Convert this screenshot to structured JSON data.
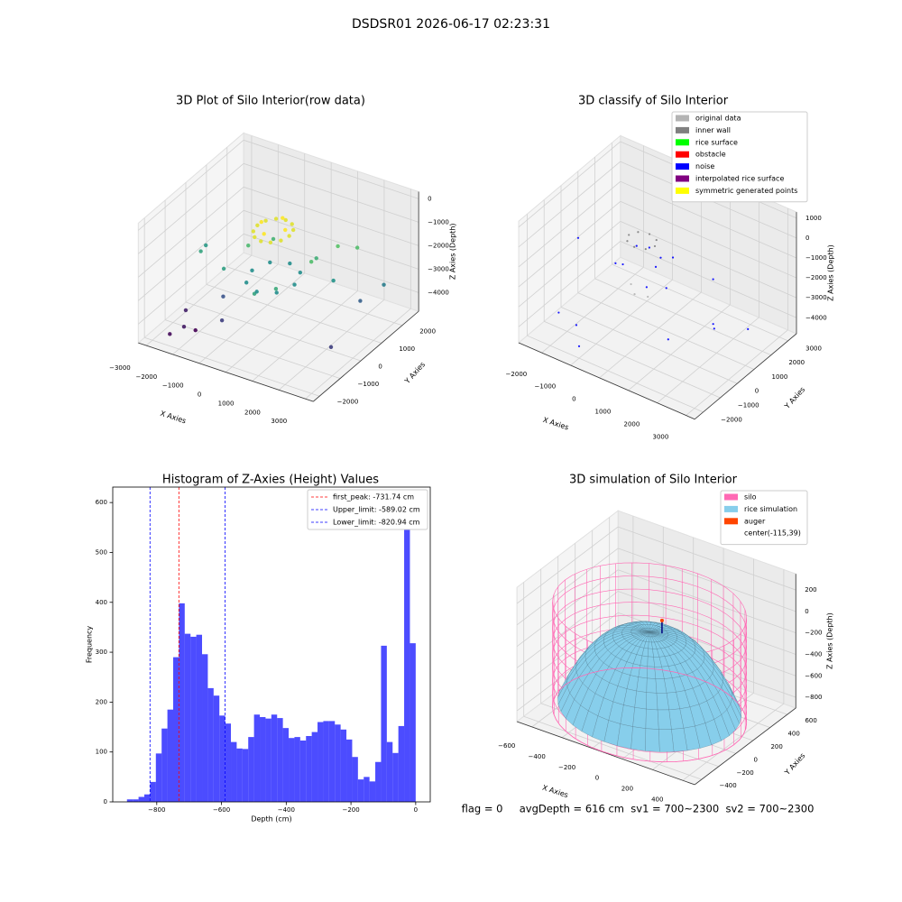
{
  "title": "DSDSR01 2026-06-17 02:23:31",
  "footer": "flag = 0     avgDepth = 616 cm  sv1 = 700~2300  sv2 = 700~2300",
  "chart_data": [
    {
      "type": "scatter3d",
      "title": "3D Plot of Silo Interior(row data)",
      "xlabel": "X Axies",
      "ylabel": "Y Axies",
      "zlabel": "Z Axies (Depth)",
      "colormap": "viridis",
      "xlim": [
        -3300,
        3300
      ],
      "ylim": [
        -2300,
        2800
      ],
      "zlim": [
        -4800,
        300
      ],
      "xticks": [
        {
          "value": -3000,
          "label": "−3000"
        },
        {
          "value": -2000,
          "label": "−2000"
        },
        {
          "value": -1000,
          "label": "−1000"
        },
        0,
        1000,
        2000,
        3000
      ],
      "yticks": [
        {
          "value": -2000,
          "label": "−2000"
        },
        {
          "value": -1000,
          "label": "−1000"
        },
        0,
        1000,
        2000
      ],
      "zticks": [
        0,
        {
          "value": -1000,
          "label": "−1000"
        },
        {
          "value": -2000,
          "label": "−2000"
        },
        {
          "value": -3000,
          "label": "−3000"
        },
        {
          "value": -4000,
          "label": "−4000"
        }
      ],
      "series": [
        {
          "x": [
            600,
            520,
            300,
            0,
            -300,
            -520,
            -600,
            -520,
            -300,
            0,
            300,
            520,
            450,
            0,
            -450,
            0,
            1200,
            -1100,
            800,
            -700,
            1500,
            300,
            -1400,
            1000,
            -2500,
            -2700,
            2000,
            1800,
            800,
            0,
            -800,
            0,
            570,
            -570,
            -570,
            570,
            -1500,
            -1000,
            2500,
            2800,
            3000,
            -2500,
            -2200,
            -2000,
            -2600
          ],
          "y": [
            0,
            300,
            520,
            600,
            520,
            300,
            0,
            -300,
            -520,
            -600,
            -520,
            -300,
            0,
            450,
            0,
            -450,
            300,
            200,
            -900,
            900,
            1200,
            -1300,
            -600,
            800,
            -300,
            200,
            1500,
            600,
            0,
            800,
            0,
            -800,
            570,
            570,
            -570,
            -570,
            -500,
            -1200,
            1000,
            -800,
            1500,
            -1800,
            -1500,
            -1200,
            -900
          ],
          "z": [
            -500,
            -500,
            -500,
            -500,
            -500,
            -500,
            -500,
            -500,
            -500,
            -500,
            -500,
            -500,
            -300,
            -300,
            -300,
            -300,
            -1600,
            -1700,
            -2000,
            -1800,
            -1500,
            -2100,
            -2200,
            -1900,
            -2100,
            -2300,
            -1600,
            -2400,
            -2500,
            -2500,
            -2500,
            -2500,
            -2500,
            -2500,
            -2500,
            -2500,
            -3500,
            -3800,
            -3300,
            -3800,
            -2800,
            -4500,
            -4300,
            -4600,
            -4200
          ]
        }
      ]
    },
    {
      "type": "scatter3d",
      "title": "3D classify of Silo Interior",
      "xlabel": "X Axies",
      "ylabel": "Y Axies",
      "zlabel": "Z Axies (Depth)",
      "xlim": [
        -2800,
        3300
      ],
      "ylim": [
        -2500,
        3500
      ],
      "zlim": [
        -4800,
        1300
      ],
      "xticks": [
        {
          "value": -2000,
          "label": "−2000"
        },
        {
          "value": -1000,
          "label": "−1000"
        },
        0,
        1000,
        2000,
        3000
      ],
      "yticks": [
        {
          "value": -2000,
          "label": "−2000"
        },
        {
          "value": -1000,
          "label": "−1000"
        },
        0,
        1000,
        2000,
        3000
      ],
      "zticks": [
        1000,
        0,
        {
          "value": -1000,
          "label": "−1000"
        },
        {
          "value": -2000,
          "label": "−2000"
        },
        {
          "value": -3000,
          "label": "−3000"
        },
        {
          "value": -4000,
          "label": "−4000"
        }
      ],
      "series": [
        {
          "name": "original data",
          "color": "#b3b3b3",
          "x": [
            -200,
            100,
            500
          ],
          "y": [
            -300,
            -600,
            -500
          ],
          "z": [
            -1800,
            -1900,
            -1850
          ]
        },
        {
          "name": "inner wall",
          "color": "#808080",
          "x": [
            450,
            318,
            0,
            -318,
            -450,
            -318,
            0,
            318
          ],
          "y": [
            0,
            318,
            450,
            318,
            0,
            -318,
            -450,
            -318
          ],
          "z": [
            300,
            300,
            300,
            300,
            300,
            300,
            300,
            300
          ]
        },
        {
          "name": "rice surface",
          "color": "#00ff00"
        },
        {
          "name": "obstacle",
          "color": "#ff0000"
        },
        {
          "name": "noise",
          "color": "#0000ff",
          "x": [
            200,
            -300,
            600,
            900,
            -1500,
            -2000,
            1500,
            2500,
            2800,
            -2500,
            1000,
            -1000,
            400,
            -600,
            300,
            1200,
            2000,
            -1800
          ],
          "y": [
            100,
            200,
            -200,
            300,
            1000,
            -1500,
            -1000,
            2000,
            -500,
            500,
            2500,
            -2000,
            -400,
            -100,
            600,
            -600,
            800,
            -800
          ],
          "z": [
            0,
            -300,
            -500,
            -200,
            -2500,
            -3500,
            -3000,
            -4000,
            -2000,
            -1500,
            -2800,
            -4200,
            -1500,
            -1200,
            -800,
            -900,
            -3200,
            -4500
          ]
        },
        {
          "name": "interpolated rice surface",
          "color": "#800080"
        },
        {
          "name": "symmetric generated points",
          "color": "#ffff00"
        }
      ]
    },
    {
      "type": "hist",
      "title": "Histogram of Z-Axies (Height) Values",
      "xlabel": "Depth (cm)",
      "ylabel": "Frequency",
      "color": "#0000ff",
      "bins": [
        -892,
        -874.16,
        -856.32,
        -838.48,
        -820.64,
        -802.8,
        -784.96,
        -767.12,
        -749.28,
        -731.44,
        -713.6,
        -695.76,
        -677.92,
        -660.08,
        -642.24,
        -624.4,
        -606.56,
        -588.72,
        -570.88,
        -553.04,
        -535.2,
        -517.36,
        -499.52,
        -481.68,
        -463.84,
        -446,
        -428.16,
        -410.32,
        -392.48,
        -374.64,
        -356.8,
        -338.96,
        -321.12,
        -303.28,
        -285.44,
        -267.6,
        -249.76,
        -231.92,
        -214.08,
        -196.24,
        -178.4,
        -160.56,
        -142.72,
        -124.88,
        -107.04,
        -89.2,
        -71.36,
        -53.52,
        -35.68,
        -17.84,
        0
      ],
      "counts": [
        5,
        5,
        10,
        15,
        40,
        97,
        147,
        185,
        290,
        398,
        337,
        331,
        335,
        296,
        228,
        213,
        173,
        157,
        120,
        107,
        106,
        130,
        175,
        170,
        167,
        175,
        168,
        148,
        128,
        130,
        123,
        132,
        140,
        160,
        162,
        162,
        155,
        145,
        125,
        90,
        45,
        50,
        41,
        80,
        313,
        120,
        98,
        152,
        595,
        318
      ],
      "vlines": [
        {
          "value": -731.74,
          "label": "first_peak: -731.74 cm",
          "color": "#ff0000"
        },
        {
          "value": -589.02,
          "label": "Upper_limit: -589.02 cm",
          "color": "#0000ff"
        },
        {
          "value": -820.94,
          "label": "Lower_limit: -820.94 cm",
          "color": "#0000ff"
        }
      ],
      "xlim": [
        -936,
        45
      ],
      "ylim": [
        0,
        631
      ],
      "xticks": [
        {
          "value": -800,
          "label": "−800"
        },
        {
          "value": -600,
          "label": "−600"
        },
        {
          "value": -400,
          "label": "−400"
        },
        {
          "value": -200,
          "label": "−200"
        },
        0
      ],
      "yticks": [
        0,
        100,
        200,
        300,
        400,
        500,
        600
      ]
    },
    {
      "type": "surface3d",
      "title": "3D simulation of Silo Interior",
      "xlabel": "X Axies",
      "ylabel": "Y Axies",
      "zlabel": "Z Axies (Depth)",
      "xlim": [
        -700,
        480
      ],
      "ylim": [
        -480,
        700
      ],
      "zlim": [
        -900,
        350
      ],
      "xticks": [
        {
          "value": -600,
          "label": "−600"
        },
        {
          "value": -400,
          "label": "−400"
        },
        {
          "value": -200,
          "label": "−200"
        },
        0,
        200,
        400
      ],
      "yticks": [
        {
          "value": -400,
          "label": "−400"
        },
        {
          "value": -200,
          "label": "−200"
        },
        0,
        200,
        400,
        600
      ],
      "zticks": [
        200,
        0,
        {
          "value": -200,
          "label": "−200"
        },
        {
          "value": -400,
          "label": "−400"
        },
        {
          "value": -600,
          "label": "−600"
        },
        {
          "value": -800,
          "label": "−800"
        }
      ],
      "series": [
        {
          "name": "silo",
          "color": "#ff69b4"
        },
        {
          "name": "rice simulation",
          "color": "#87ceeb"
        },
        {
          "name": "auger",
          "color": "#ff4500"
        },
        {
          "name": "center(-115,39)"
        }
      ]
    }
  ]
}
